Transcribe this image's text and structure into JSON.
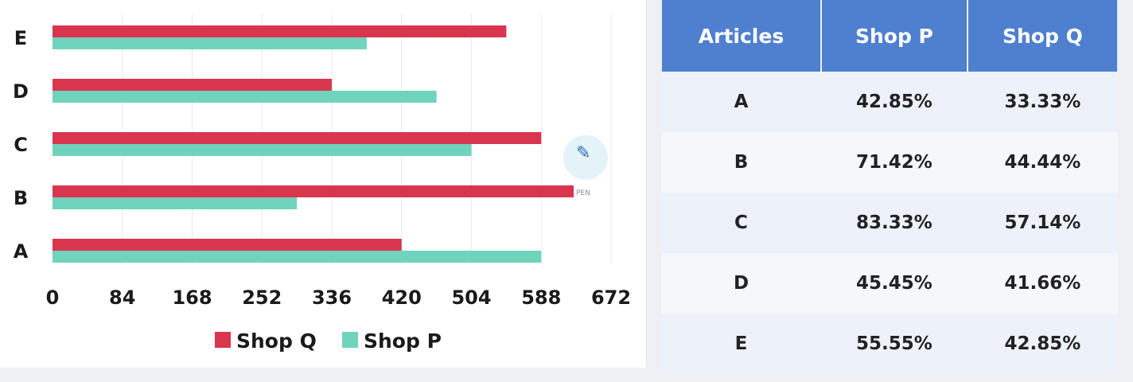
{
  "chart_data": {
    "type": "bar",
    "orientation": "horizontal",
    "categories": [
      "A",
      "B",
      "C",
      "D",
      "E"
    ],
    "series": [
      {
        "name": "Shop Q",
        "color": "#d9354f",
        "values": [
          420,
          627,
          588,
          336,
          546
        ]
      },
      {
        "name": "Shop P",
        "color": "#6fd3bd",
        "values": [
          588,
          294,
          504,
          462,
          378
        ]
      }
    ],
    "xticks": [
      "0",
      "84",
      "168",
      "252",
      "336",
      "420",
      "504",
      "588",
      "672"
    ],
    "xlim": [
      0,
      672
    ],
    "grid": true,
    "legend": "bottom"
  },
  "pen_badge": {
    "label": "PEN",
    "icon": "pen-icon"
  },
  "table": {
    "headers": [
      "Articles",
      "Shop P",
      "Shop Q"
    ],
    "rows": [
      [
        "A",
        "42.85%",
        "33.33%"
      ],
      [
        "B",
        "71.42%",
        "44.44%"
      ],
      [
        "C",
        "83.33%",
        "57.14%"
      ],
      [
        "D",
        "45.45%",
        "41.66%"
      ],
      [
        "E",
        "55.55%",
        "42.85%"
      ]
    ],
    "header_color": "#4f7fcf"
  }
}
